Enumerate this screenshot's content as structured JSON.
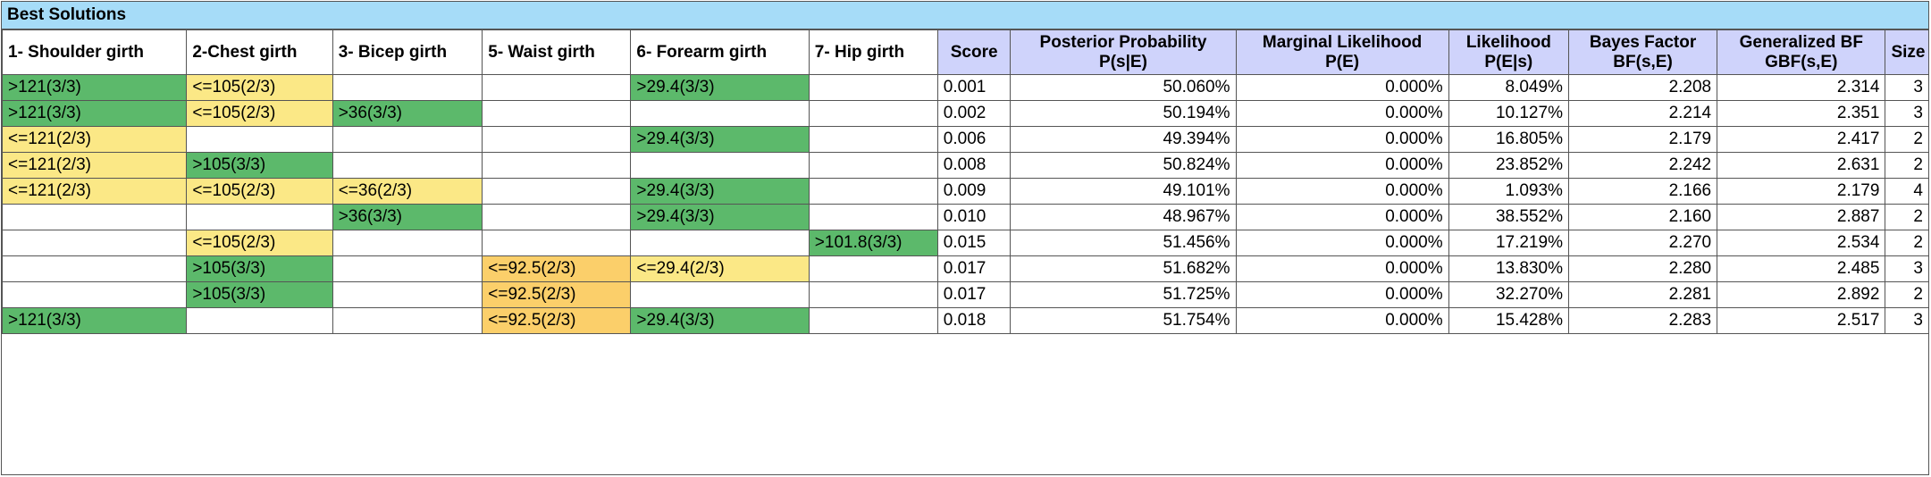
{
  "title": "Best Solutions",
  "colors": {
    "title_bg": "#a6dcf8",
    "stat_header_bg": "#cfd3fb",
    "greater": "#5cb96b",
    "less_equal": "#fbe886",
    "less_equal_alt": "#fbcf6a"
  },
  "headers": {
    "feature_cols": [
      "1- Shoulder girth",
      "2-Chest girth",
      "3- Bicep girth",
      "5- Waist girth",
      "6- Forearm girth",
      "7- Hip girth"
    ],
    "score": "Score",
    "posterior": {
      "line1": "Posterior Probability",
      "line2": "P(s|E)"
    },
    "marginal": {
      "line1": "Marginal Likelihood",
      "line2": "P(E)"
    },
    "likelihood": {
      "line1": "Likelihood",
      "line2": "P(E|s)"
    },
    "bayes": {
      "line1": "Bayes Factor",
      "line2": "BF(s,E)"
    },
    "gbf": {
      "line1": "Generalized BF",
      "line2": "GBF(s,E)"
    },
    "size": "Size"
  },
  "rows": [
    {
      "cells": [
        ">121(3/3)",
        "<=105(2/3)",
        "",
        "",
        ">29.4(3/3)",
        ""
      ],
      "score": "0.001",
      "posterior": "50.060%",
      "marginal": "0.000%",
      "likelihood": "8.049%",
      "bf": "2.208",
      "gbf": "2.314",
      "size": "3"
    },
    {
      "cells": [
        ">121(3/3)",
        "<=105(2/3)",
        ">36(3/3)",
        "",
        "",
        ""
      ],
      "score": "0.002",
      "posterior": "50.194%",
      "marginal": "0.000%",
      "likelihood": "10.127%",
      "bf": "2.214",
      "gbf": "2.351",
      "size": "3"
    },
    {
      "cells": [
        "<=121(2/3)",
        "",
        "",
        "",
        ">29.4(3/3)",
        ""
      ],
      "score": "0.006",
      "posterior": "49.394%",
      "marginal": "0.000%",
      "likelihood": "16.805%",
      "bf": "2.179",
      "gbf": "2.417",
      "size": "2"
    },
    {
      "cells": [
        "<=121(2/3)",
        ">105(3/3)",
        "",
        "",
        "",
        ""
      ],
      "score": "0.008",
      "posterior": "50.824%",
      "marginal": "0.000%",
      "likelihood": "23.852%",
      "bf": "2.242",
      "gbf": "2.631",
      "size": "2"
    },
    {
      "cells": [
        "<=121(2/3)",
        "<=105(2/3)",
        "<=36(2/3)",
        "",
        ">29.4(3/3)",
        ""
      ],
      "score": "0.009",
      "posterior": "49.101%",
      "marginal": "0.000%",
      "likelihood": "1.093%",
      "bf": "2.166",
      "gbf": "2.179",
      "size": "4"
    },
    {
      "cells": [
        "",
        "",
        ">36(3/3)",
        "",
        ">29.4(3/3)",
        ""
      ],
      "score": "0.010",
      "posterior": "48.967%",
      "marginal": "0.000%",
      "likelihood": "38.552%",
      "bf": "2.160",
      "gbf": "2.887",
      "size": "2"
    },
    {
      "cells": [
        "",
        "<=105(2/3)",
        "",
        "",
        "",
        ">101.8(3/3)"
      ],
      "score": "0.015",
      "posterior": "51.456%",
      "marginal": "0.000%",
      "likelihood": "17.219%",
      "bf": "2.270",
      "gbf": "2.534",
      "size": "2"
    },
    {
      "cells": [
        "",
        ">105(3/3)",
        "",
        "<=92.5(2/3)",
        "<=29.4(2/3)",
        ""
      ],
      "score": "0.017",
      "posterior": "51.682%",
      "marginal": "0.000%",
      "likelihood": "13.830%",
      "bf": "2.280",
      "gbf": "2.485",
      "size": "3"
    },
    {
      "cells": [
        "",
        ">105(3/3)",
        "",
        "<=92.5(2/3)",
        "",
        ""
      ],
      "score": "0.017",
      "posterior": "51.725%",
      "marginal": "0.000%",
      "likelihood": "32.270%",
      "bf": "2.281",
      "gbf": "2.892",
      "size": "2"
    },
    {
      "cells": [
        ">121(3/3)",
        "",
        "",
        "<=92.5(2/3)",
        ">29.4(3/3)",
        ""
      ],
      "score": "0.018",
      "posterior": "51.754%",
      "marginal": "0.000%",
      "likelihood": "15.428%",
      "bf": "2.283",
      "gbf": "2.517",
      "size": "3"
    }
  ]
}
